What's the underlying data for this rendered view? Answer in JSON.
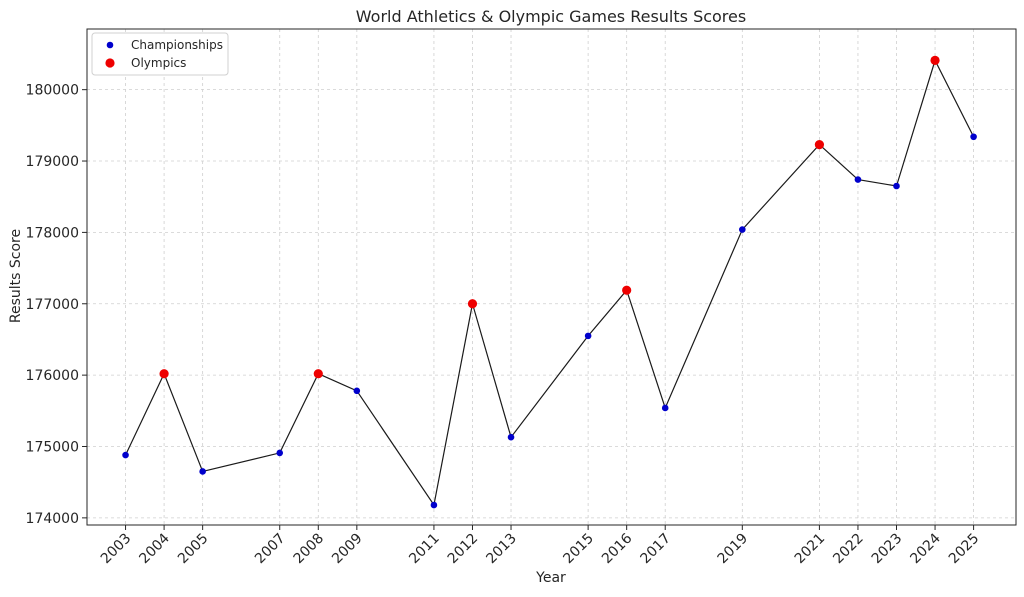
{
  "chart_data": {
    "type": "line",
    "title": "World Athletics & Olympic Games Results Scores",
    "xlabel": "Year",
    "ylabel": "Results Score",
    "x": [
      2003,
      2004,
      2005,
      2007,
      2008,
      2009,
      2011,
      2012,
      2013,
      2015,
      2016,
      2017,
      2019,
      2021,
      2022,
      2023,
      2024,
      2025
    ],
    "values": [
      174880,
      176020,
      174650,
      174910,
      176020,
      175780,
      174180,
      177000,
      175130,
      176550,
      177190,
      175540,
      178040,
      179230,
      178740,
      178650,
      180410,
      179340
    ],
    "event_type": [
      "Championships",
      "Olympics",
      "Championships",
      "Championships",
      "Olympics",
      "Championships",
      "Championships",
      "Olympics",
      "Championships",
      "Championships",
      "Olympics",
      "Championships",
      "Championships",
      "Olympics",
      "Championships",
      "Championships",
      "Olympics",
      "Championships"
    ],
    "x_tick_labels": [
      "2003",
      "2004",
      "2005",
      "2007",
      "2008",
      "2009",
      "2011",
      "2012",
      "2013",
      "2015",
      "2016",
      "2017",
      "2019",
      "2021",
      "2022",
      "2023",
      "2024",
      "2025"
    ],
    "y_ticks": [
      174000,
      175000,
      176000,
      177000,
      178000,
      179000,
      180000
    ],
    "y_tick_labels": [
      "174000",
      "175000",
      "176000",
      "177000",
      "178000",
      "179000",
      "180000"
    ],
    "xlim": [
      2002.0,
      2026.1
    ],
    "ylim": [
      173900,
      180850
    ],
    "grid": true,
    "legend": {
      "position": "top-left",
      "entries": [
        {
          "label": "Championships",
          "color": "#0000cc"
        },
        {
          "label": "Olympics",
          "color": "#ee0000"
        }
      ]
    },
    "colors": {
      "line": "#1a1a1a",
      "championships": "#0000cc",
      "olympics": "#ee0000"
    }
  }
}
